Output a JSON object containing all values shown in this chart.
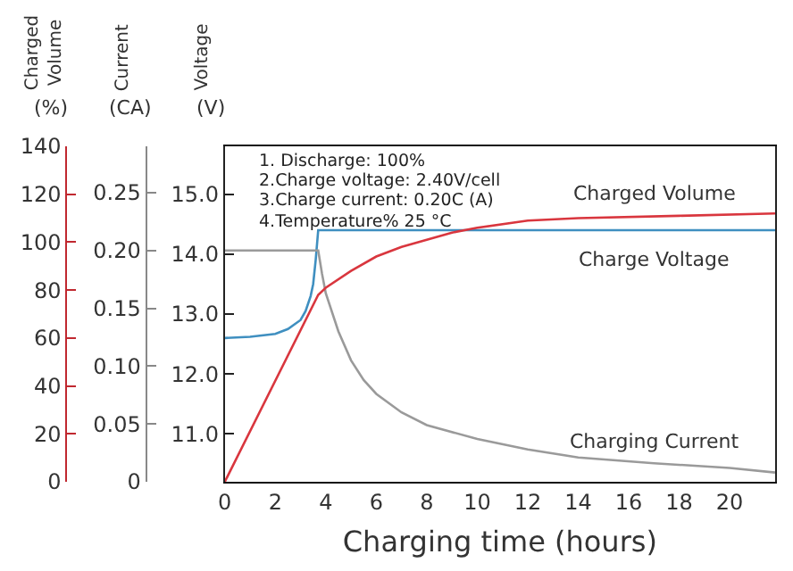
{
  "chart_data": {
    "type": "line",
    "xlabel": "Charging time (hours)",
    "ylabel": "Voltage (V)",
    "y2label": "Current (CA)",
    "y3label": "Charged Volume (%)",
    "annotations": [
      "1. Discharge: 100%",
      "2.Charge voltage: 2.40V/cell",
      "3.Charge current: 0.20C (A)",
      "4.Temperature% 25 °C"
    ],
    "xlim": [
      0,
      21.8
    ],
    "xticks": [
      0,
      2,
      4,
      6,
      8,
      10,
      12,
      14,
      16,
      18,
      20
    ],
    "ylim": [
      10.2,
      15.8
    ],
    "yticks": [
      {
        "value": 11,
        "label": "11.0"
      },
      {
        "value": 12,
        "label": "12.0"
      },
      {
        "value": 13,
        "label": "13.0"
      },
      {
        "value": 14,
        "label": "14.0"
      },
      {
        "value": 15,
        "label": "15.0"
      }
    ],
    "y2lim": [
      0,
      0.29
    ],
    "y2ticks": [
      0,
      0.05,
      {
        "value": 0.1,
        "label": "0.10"
      },
      0.15,
      {
        "value": 0.2,
        "label": "0.20"
      },
      0.25
    ],
    "y3lim": [
      0,
      140
    ],
    "y3ticks": [
      0,
      20,
      40,
      60,
      80,
      100,
      120,
      140
    ],
    "legend": false,
    "marker": "none",
    "series": [
      {
        "name": "Charged Volume",
        "color": "#d9363e",
        "axis": "y3",
        "x": [
          0,
          3.7,
          4,
          5,
          6,
          7,
          8,
          9,
          10,
          12,
          14,
          18,
          21.8
        ],
        "values": [
          0,
          78,
          81,
          88,
          94,
          98,
          101,
          104,
          106,
          109,
          110,
          111,
          112
        ]
      },
      {
        "name": "Charge Voltage",
        "color": "#3f8fc0",
        "x": [
          0,
          1,
          2,
          2.5,
          3,
          3.2,
          3.4,
          3.5,
          3.6,
          3.7,
          21.8
        ],
        "values": [
          12.6,
          12.62,
          12.67,
          12.75,
          12.9,
          13.05,
          13.3,
          13.5,
          13.9,
          14.4,
          14.4
        ]
      },
      {
        "name": "Charging Current",
        "color": "#9a9a9a",
        "axis": "y2",
        "x": [
          0,
          3.7,
          3.85,
          4,
          4.5,
          5,
          5.5,
          6,
          7,
          8,
          10,
          12,
          14,
          17,
          20,
          21.8
        ],
        "values": [
          0.2,
          0.2,
          0.18,
          0.163,
          0.13,
          0.105,
          0.088,
          0.076,
          0.06,
          0.049,
          0.037,
          0.028,
          0.021,
          0.016,
          0.012,
          0.008
        ]
      }
    ]
  }
}
